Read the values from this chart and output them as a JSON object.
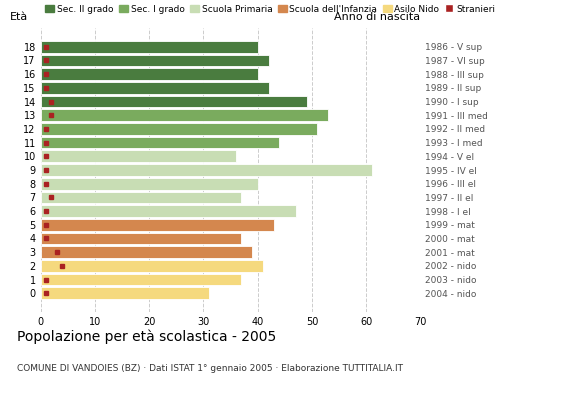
{
  "ages": [
    18,
    17,
    16,
    15,
    14,
    13,
    12,
    11,
    10,
    9,
    8,
    7,
    6,
    5,
    4,
    3,
    2,
    1,
    0
  ],
  "values": [
    40,
    42,
    40,
    42,
    49,
    53,
    51,
    44,
    36,
    61,
    40,
    37,
    47,
    43,
    37,
    39,
    41,
    37,
    31
  ],
  "stranieri_x": [
    1,
    1,
    1,
    1,
    2,
    2,
    1,
    1,
    1,
    1,
    1,
    2,
    1,
    1,
    1,
    3,
    4,
    1,
    1
  ],
  "anno_labels": [
    "1986 - V sup",
    "1987 - VI sup",
    "1988 - III sup",
    "1989 - II sup",
    "1990 - I sup",
    "1991 - III med",
    "1992 - II med",
    "1993 - I med",
    "1994 - V el",
    "1995 - IV el",
    "1996 - III el",
    "1997 - II el",
    "1998 - I el",
    "1999 - mat",
    "2000 - mat",
    "2001 - mat",
    "2002 - nido",
    "2003 - nido",
    "2004 - nido"
  ],
  "bar_colors": [
    "#4a7c3f",
    "#4a7c3f",
    "#4a7c3f",
    "#4a7c3f",
    "#4a7c3f",
    "#7aab5e",
    "#7aab5e",
    "#7aab5e",
    "#c8ddb4",
    "#c8ddb4",
    "#c8ddb4",
    "#c8ddb4",
    "#c8ddb4",
    "#d4874e",
    "#d4874e",
    "#d4874e",
    "#f5d97e",
    "#f5d97e",
    "#f5d97e"
  ],
  "stranieri_color": "#aa2222",
  "title": "Popolazione per età scolastica - 2005",
  "subtitle": "COMUNE DI VANDOIES (BZ) · Dati ISTAT 1° gennaio 2005 · Elaborazione TUTTITALIA.IT",
  "eta_label": "Età",
  "anno_label": "Anno di nascita",
  "xlim": [
    0,
    70
  ],
  "xticks": [
    0,
    10,
    20,
    30,
    40,
    50,
    60,
    70
  ],
  "grid_color": "#cccccc",
  "bg_color": "#ffffff",
  "legend_labels": [
    "Sec. II grado",
    "Sec. I grado",
    "Scuola Primaria",
    "Scuola dell'Infanzia",
    "Asilo Nido",
    "Stranieri"
  ],
  "legend_colors": [
    "#4a7c3f",
    "#7aab5e",
    "#c8ddb4",
    "#d4874e",
    "#f5d97e",
    "#aa2222"
  ]
}
